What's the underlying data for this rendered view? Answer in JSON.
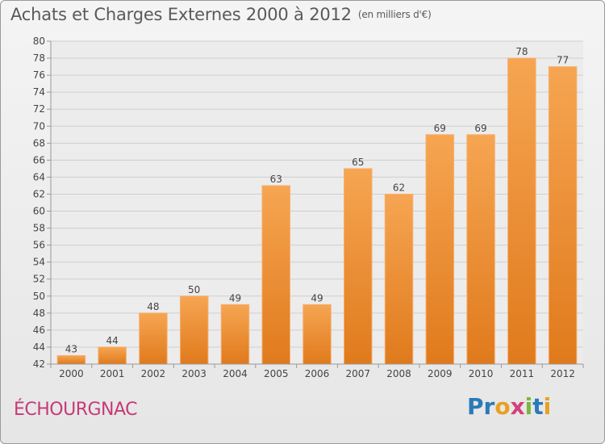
{
  "title": "Achats et Charges Externes 2000 à 2012",
  "unit": "(en milliers d'€)",
  "commune": "ÉCHOURGNAC",
  "brand": {
    "letters": [
      "P",
      "r",
      "o",
      "x",
      "i",
      "t",
      "i"
    ],
    "colors": [
      "#2a7ab8",
      "#2a7ab8",
      "#e8a020",
      "#d2427a",
      "#7ab640",
      "#2a7ab8",
      "#e8a020"
    ]
  },
  "chart_data": {
    "type": "bar",
    "categories": [
      "2000",
      "2001",
      "2002",
      "2003",
      "2004",
      "2005",
      "2006",
      "2007",
      "2008",
      "2009",
      "2010",
      "2011",
      "2012"
    ],
    "values": [
      43,
      44,
      48,
      50,
      49,
      63,
      49,
      65,
      62,
      69,
      69,
      78,
      77
    ],
    "ylim": [
      42,
      80
    ],
    "yticks": [
      42,
      44,
      46,
      48,
      50,
      52,
      54,
      56,
      58,
      60,
      62,
      64,
      66,
      68,
      70,
      72,
      74,
      76,
      78,
      80
    ],
    "grid": true,
    "bar_color": "#f0943c"
  }
}
